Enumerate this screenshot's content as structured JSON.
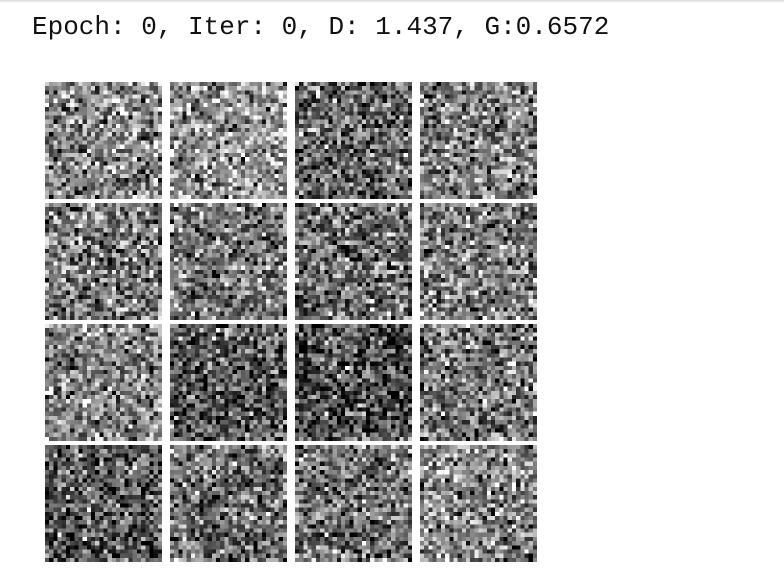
{
  "training_output": {
    "status_text": "Epoch: 0, Iter: 0, D: 1.437, G:0.6572"
  },
  "sample_grid": {
    "rows": 4,
    "columns": 4,
    "pixels_per_side": 28,
    "colors": {
      "background": "#ffffff",
      "text": "#111111"
    },
    "tile_tone": [
      [
        0.53,
        0.58,
        0.4,
        0.5
      ],
      [
        0.48,
        0.46,
        0.44,
        0.49
      ],
      [
        0.52,
        0.36,
        0.31,
        0.46
      ],
      [
        0.35,
        0.44,
        0.43,
        0.53
      ]
    ]
  }
}
